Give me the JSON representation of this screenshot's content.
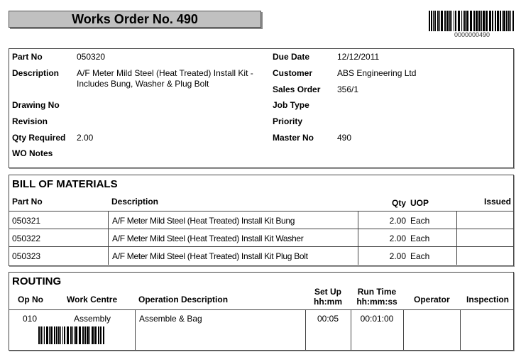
{
  "header": {
    "title": "Works Order No.  490",
    "barcode_text": "0000000490"
  },
  "details": {
    "left": [
      {
        "label": "Part No",
        "value": "050320"
      },
      {
        "label": "Description",
        "value": "A/F Meter Mild Steel (Heat Treated) Install Kit - Includes Bung, Washer & Plug Bolt"
      },
      {
        "label": "Drawing No",
        "value": ""
      },
      {
        "label": "Revision",
        "value": ""
      },
      {
        "label": "Qty Required",
        "value": "2.00"
      },
      {
        "label": "WO Notes",
        "value": ""
      }
    ],
    "right": [
      {
        "label": "Due Date",
        "value": "12/12/2011"
      },
      {
        "label": "Customer",
        "value": "ABS Engineering Ltd"
      },
      {
        "label": "Sales Order",
        "value": "356/1"
      },
      {
        "label": "Job Type",
        "value": ""
      },
      {
        "label": "Priority",
        "value": ""
      },
      {
        "label": "Master No",
        "value": "490"
      }
    ]
  },
  "bom": {
    "title": "BILL OF MATERIALS",
    "columns": {
      "part": "Part No",
      "desc": "Description",
      "qty": "Qty",
      "uop": "UOP",
      "issued": "Issued"
    },
    "rows": [
      {
        "part": "050321",
        "desc": "A/F Meter Mild Steel (Heat Treated) Install Kit Bung",
        "qty": "2.00",
        "uop": "Each",
        "issued": ""
      },
      {
        "part": "050322",
        "desc": "A/F Meter Mild Steel (Heat Treated) Install Kit Washer",
        "qty": "2.00",
        "uop": "Each",
        "issued": ""
      },
      {
        "part": "050323",
        "desc": "A/F Meter Mild Steel (Heat Treated) Install Kit Plug Bolt",
        "qty": "2.00",
        "uop": "Each",
        "issued": ""
      }
    ]
  },
  "routing": {
    "title": "ROUTING",
    "columns": {
      "op": "Op No",
      "wc": "Work Centre",
      "desc": "Operation Description",
      "setup1": "Set Up",
      "setup2": "hh:mm",
      "run1": "Run Time",
      "run2": "hh:mm:ss",
      "operator": "Operator",
      "inspection": "Inspection"
    },
    "rows": [
      {
        "op": "010",
        "wc": "Assembly",
        "desc": "Assemble & Bag",
        "setup": "00:05",
        "run": "00:01:00",
        "operator": "",
        "inspection": ""
      }
    ]
  }
}
